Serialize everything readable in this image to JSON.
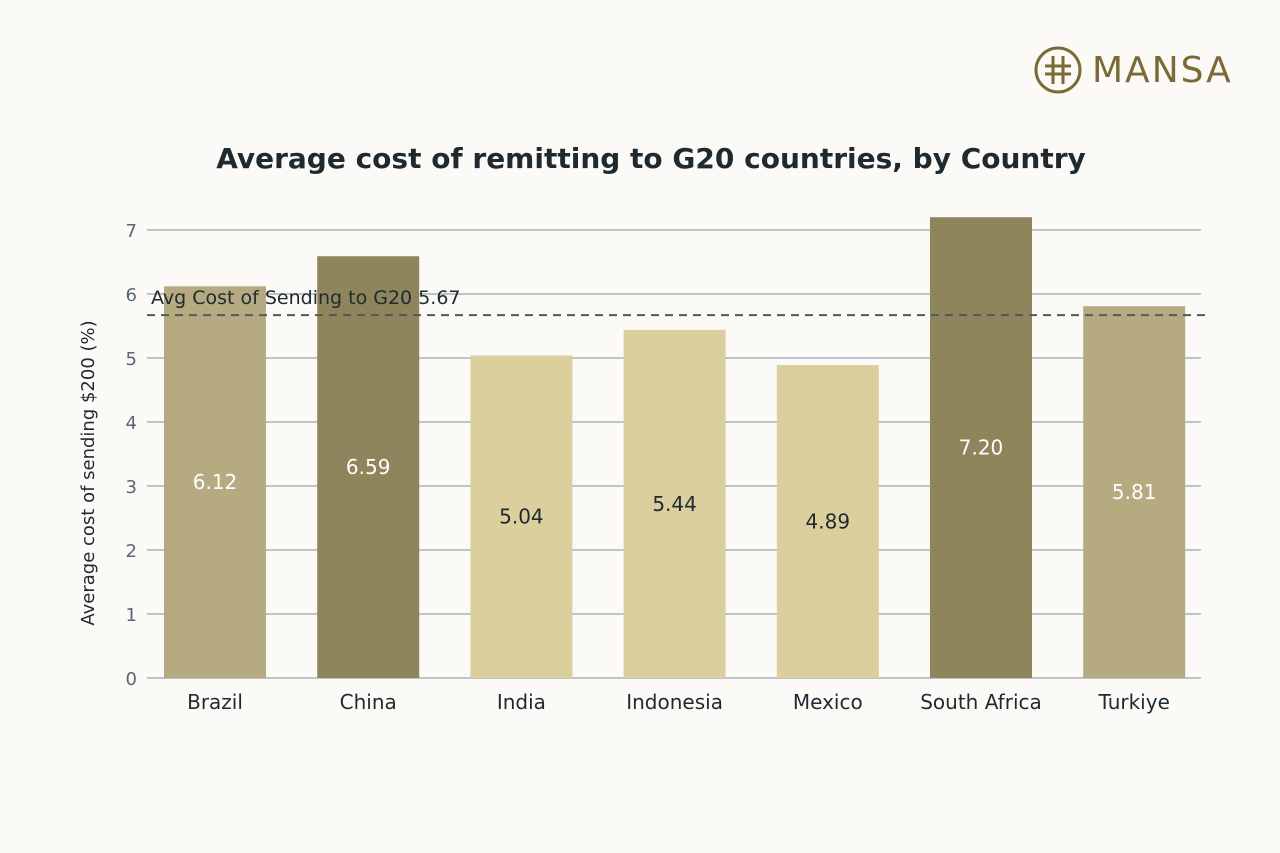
{
  "brand": {
    "name": "MANSA",
    "color": "#7a6a36",
    "icon": "mansa-logo-icon"
  },
  "chart_data": {
    "type": "bar",
    "title": "Average cost of remitting to G20 countries, by Country",
    "xlabel": "",
    "ylabel": "Average cost of sending $200 (%)",
    "ylim": [
      0,
      7
    ],
    "yticks": [
      0,
      1,
      2,
      3,
      4,
      5,
      6,
      7
    ],
    "grid": true,
    "categories": [
      "Brazil",
      "China",
      "India",
      "Indonesia",
      "Mexico",
      "South Africa",
      "Turkiye"
    ],
    "values": [
      6.12,
      6.59,
      5.04,
      5.44,
      4.89,
      7.2,
      5.81
    ],
    "data_labels": [
      "6.12",
      "6.59",
      "5.04",
      "5.44",
      "4.89",
      "7.20",
      "5.81"
    ],
    "bar_colors": [
      "#b5aa80",
      "#8f855d",
      "#dbd09d",
      "#dbd09d",
      "#dbd09d",
      "#8f855d",
      "#b5aa80"
    ],
    "label_colors": [
      "#ffffff",
      "#ffffff",
      "#1f2a30",
      "#1f2a30",
      "#1f2a30",
      "#ffffff",
      "#ffffff"
    ],
    "reference_line": {
      "value": 5.67,
      "label": "Avg Cost of Sending  to G20 5.67",
      "style": "dashed",
      "color": "#4d5a5f"
    }
  }
}
